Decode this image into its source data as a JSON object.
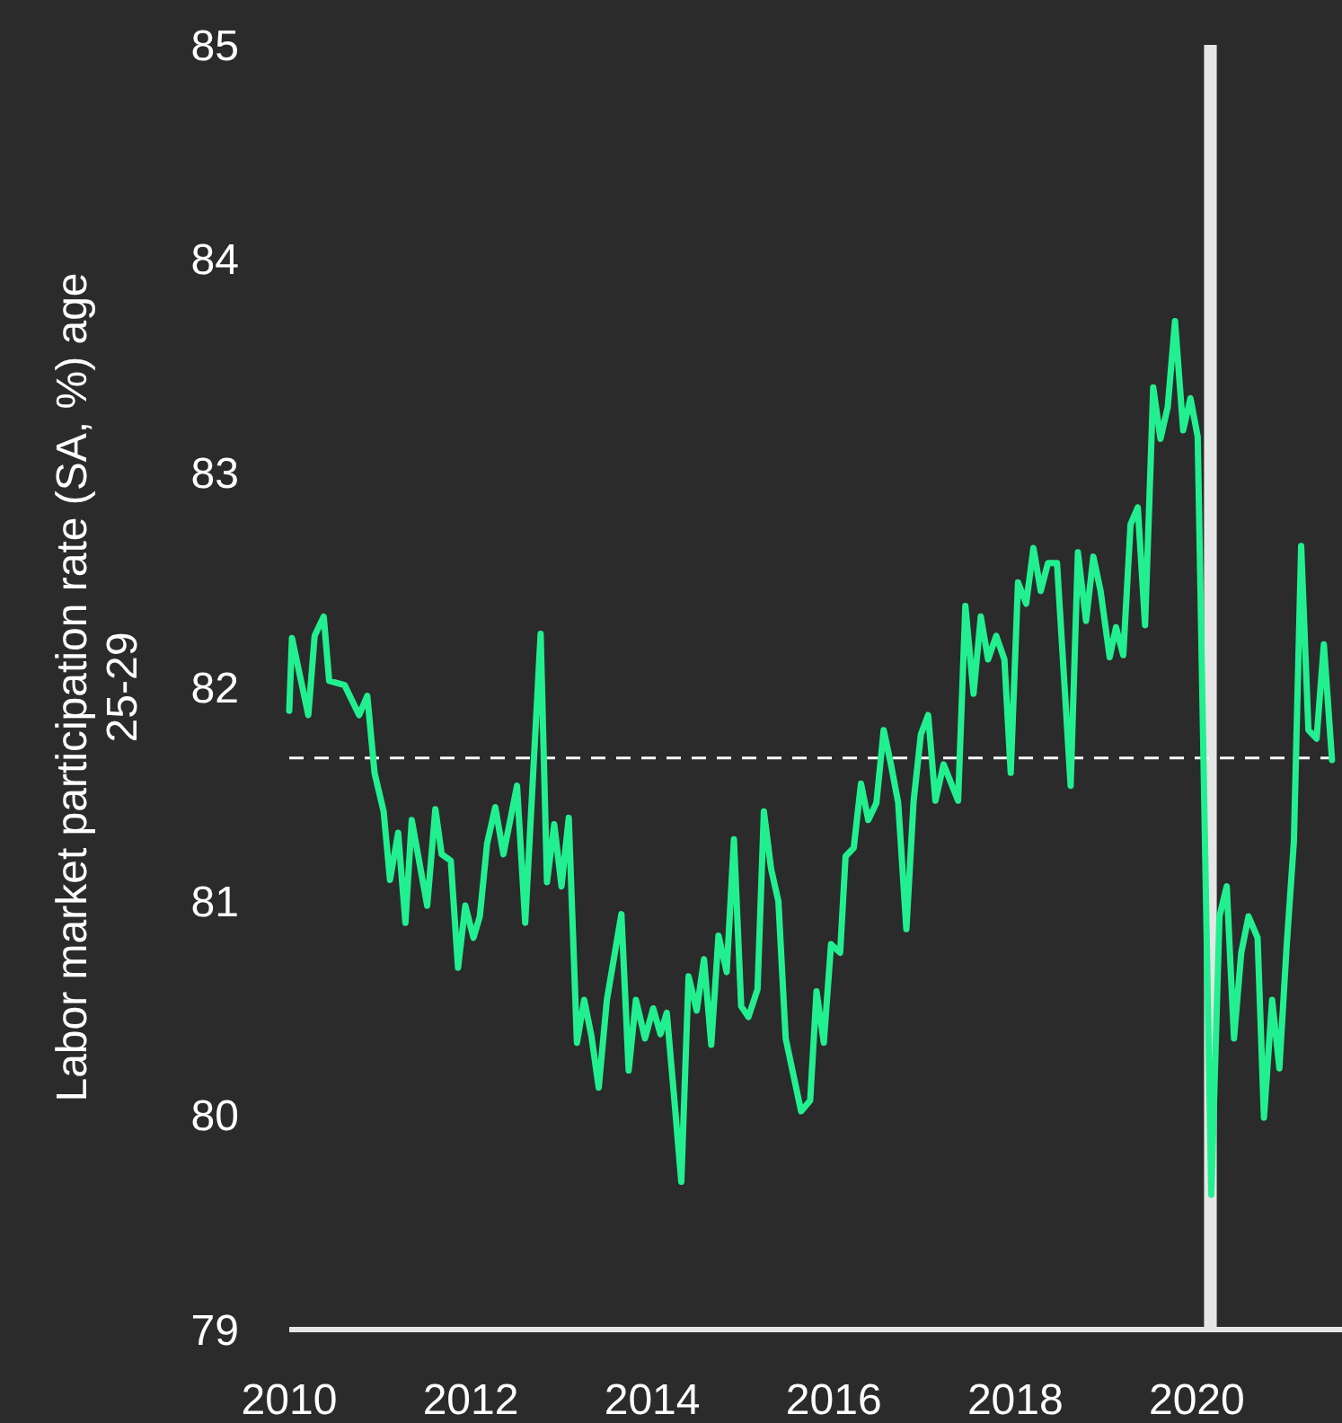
{
  "chart_data": {
    "type": "line",
    "ylabel": "Labor market participation rate (SA, %) age 25-29",
    "x": [
      2010.0,
      2010.03,
      2010.21,
      2010.28,
      2010.38,
      2010.44,
      2010.61,
      2010.77,
      2010.86,
      2010.94,
      2011.04,
      2011.11,
      2011.2,
      2011.28,
      2011.35,
      2011.52,
      2011.61,
      2011.68,
      2011.78,
      2011.86,
      2011.94,
      2012.03,
      2012.1,
      2012.18,
      2012.27,
      2012.36,
      2012.51,
      2012.6,
      2012.77,
      2012.84,
      2012.92,
      2013.0,
      2013.08,
      2013.17,
      2013.25,
      2013.33,
      2013.41,
      2013.5,
      2013.66,
      2013.74,
      2013.82,
      2013.92,
      2014.01,
      2014.09,
      2014.16,
      2014.24,
      2014.32,
      2014.4,
      2014.49,
      2014.57,
      2014.65,
      2014.73,
      2014.82,
      2014.9,
      2014.98,
      2015.06,
      2015.16,
      2015.23,
      2015.31,
      2015.39,
      2015.47,
      2015.64,
      2015.74,
      2015.81,
      2015.89,
      2015.97,
      2016.07,
      2016.13,
      2016.22,
      2016.3,
      2016.38,
      2016.47,
      2016.55,
      2016.63,
      2016.71,
      2016.8,
      2016.88,
      2016.96,
      2017.04,
      2017.12,
      2017.21,
      2017.37,
      2017.45,
      2017.54,
      2017.62,
      2017.7,
      2017.79,
      2017.88,
      2017.95,
      2018.03,
      2018.12,
      2018.2,
      2018.28,
      2018.36,
      2018.46,
      2018.61,
      2018.69,
      2018.78,
      2018.86,
      2018.94,
      2019.04,
      2019.11,
      2019.19,
      2019.27,
      2019.35,
      2019.43,
      2019.52,
      2019.6,
      2019.68,
      2019.76,
      2019.85,
      2019.93,
      2020.01,
      2020.16,
      2020.25,
      2020.33,
      2020.41,
      2020.49,
      2020.57,
      2020.67,
      2020.74,
      2020.83,
      2020.91,
      2020.99,
      2021.07,
      2021.15,
      2021.23,
      2021.32,
      2021.4,
      2021.49
    ],
    "series": [
      {
        "color": "#22f090",
        "values": [
          81.89,
          82.23,
          81.87,
          82.24,
          82.33,
          82.03,
          82.01,
          81.87,
          81.96,
          81.6,
          81.42,
          81.1,
          81.32,
          80.9,
          81.38,
          80.98,
          81.43,
          81.22,
          81.19,
          80.69,
          80.98,
          80.83,
          80.93,
          81.27,
          81.44,
          81.22,
          81.54,
          80.9,
          82.25,
          81.09,
          81.36,
          81.07,
          81.39,
          80.34,
          80.54,
          80.37,
          80.13,
          80.54,
          80.94,
          80.21,
          80.54,
          80.36,
          80.5,
          80.38,
          80.48,
          80.09,
          79.69,
          80.65,
          80.49,
          80.73,
          80.33,
          80.84,
          80.67,
          81.29,
          80.51,
          80.46,
          80.59,
          81.42,
          81.15,
          81.0,
          80.36,
          80.02,
          80.07,
          80.58,
          80.34,
          80.8,
          80.76,
          81.21,
          81.25,
          81.55,
          81.38,
          81.46,
          81.8,
          81.64,
          81.46,
          80.87,
          81.47,
          81.78,
          81.87,
          81.47,
          81.64,
          81.47,
          82.38,
          81.97,
          82.33,
          82.13,
          82.24,
          82.13,
          81.6,
          82.49,
          82.39,
          82.65,
          82.45,
          82.58,
          82.58,
          81.54,
          82.63,
          82.31,
          82.61,
          82.45,
          82.14,
          82.28,
          82.15,
          82.76,
          82.84,
          82.29,
          83.4,
          83.16,
          83.31,
          83.71,
          83.2,
          83.35,
          83.17,
          79.63,
          80.93,
          81.07,
          80.36,
          80.76,
          80.93,
          80.83,
          79.99,
          80.54,
          80.22,
          80.79,
          81.28,
          82.66,
          81.8,
          81.76,
          82.2,
          81.66
        ]
      }
    ],
    "xlim": [
      2010,
      2021.6
    ],
    "xticks": [
      2010,
      2012,
      2014,
      2016,
      2018,
      2020
    ],
    "ylim": [
      79,
      85
    ],
    "yticks": [
      79,
      80,
      81,
      82,
      83,
      84,
      85
    ],
    "grid": false,
    "marker": "none",
    "line_style": "solid",
    "ref_lines": [
      {
        "axis": "y",
        "value": 81.67,
        "color": "#ffffff",
        "line_style": "dashed"
      }
    ],
    "bands": [
      {
        "axis": "x",
        "from": 2020.08,
        "to": 2020.22,
        "color": "#e6e6e6"
      }
    ]
  }
}
